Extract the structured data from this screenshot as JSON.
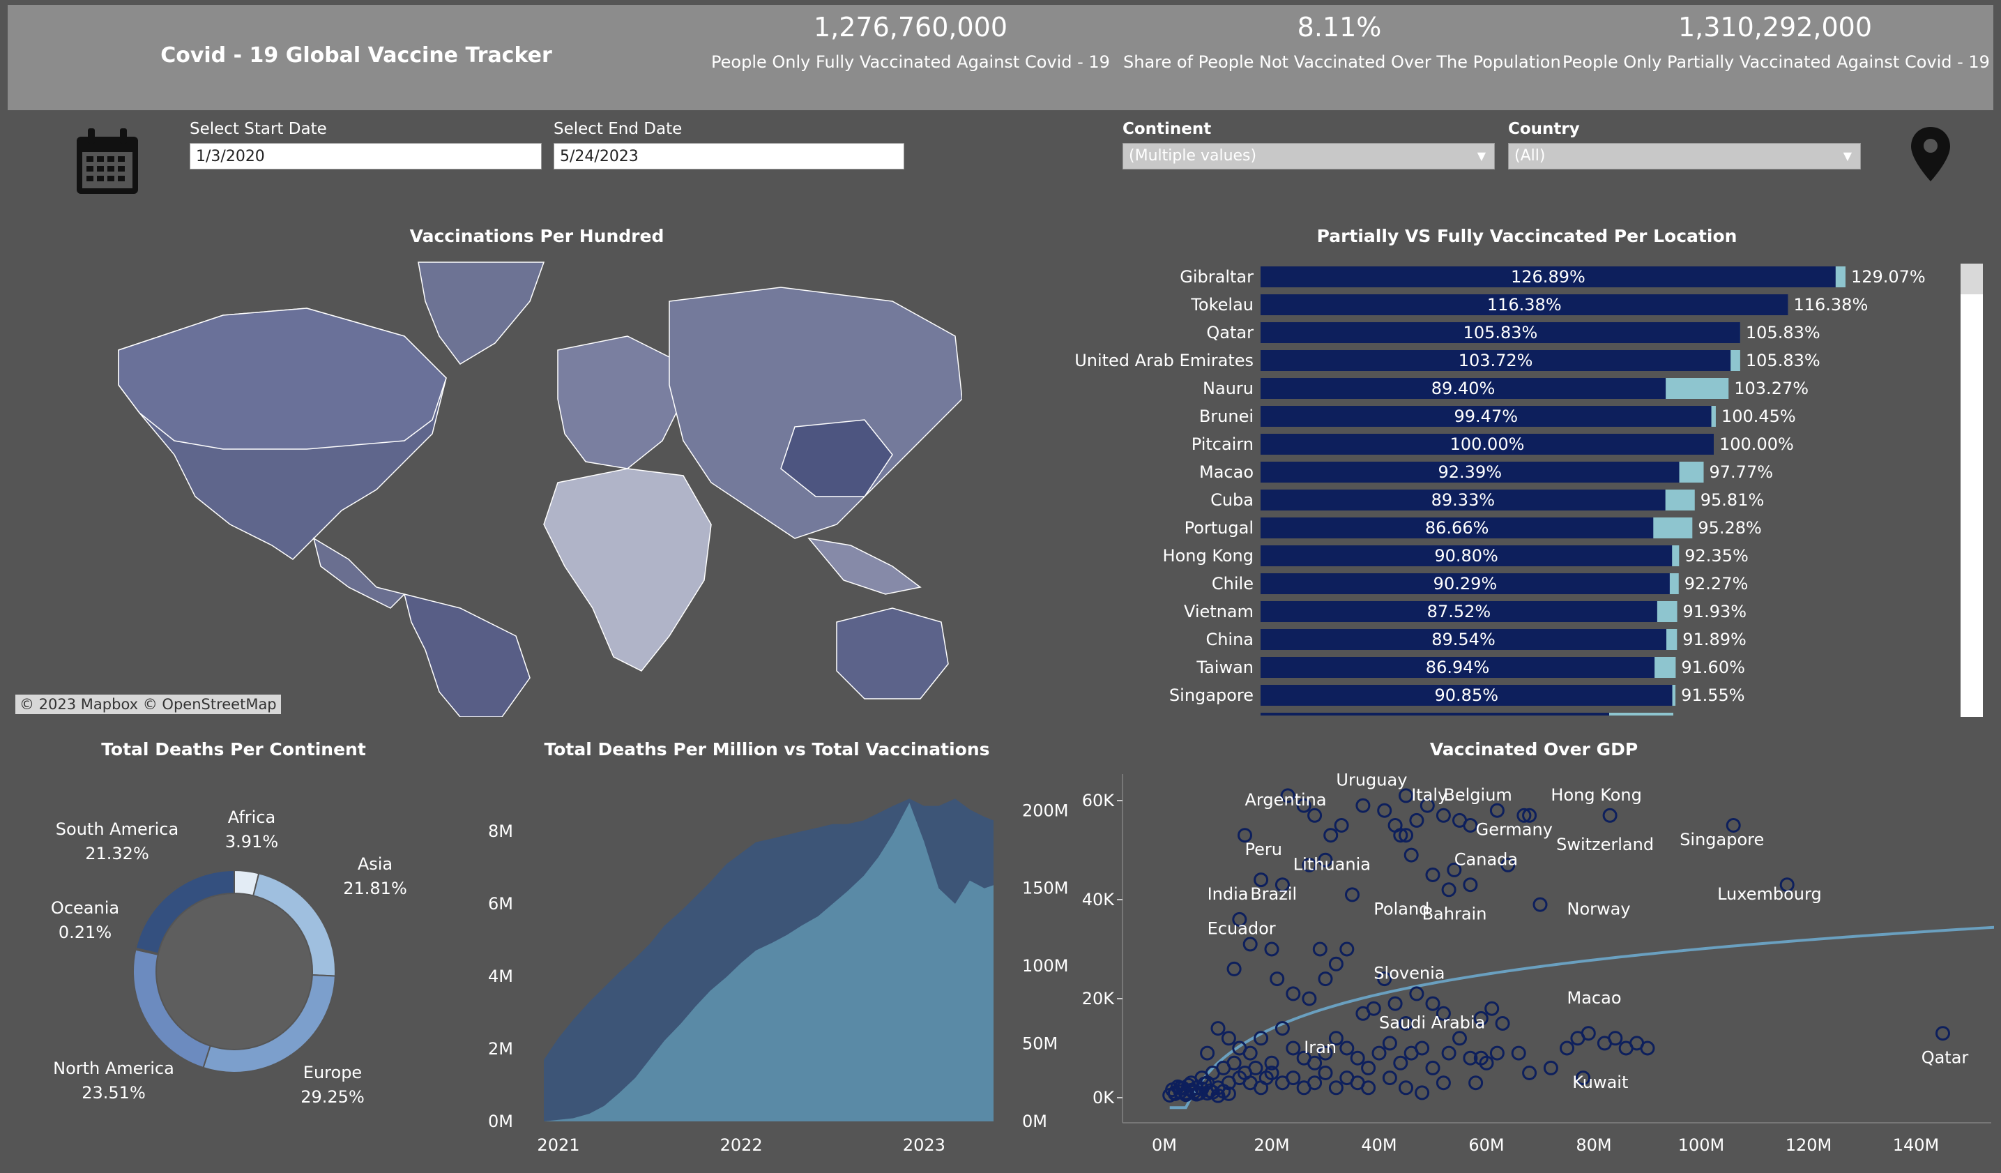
{
  "header": {
    "title": "Covid - 19 Global Vaccine Tracker",
    "kpis": [
      {
        "value": "1,276,760,000",
        "label": "People Only Fully Vaccinated Against Covid - 19"
      },
      {
        "value": "8.11%",
        "label": "Share of People Not Vaccinated Over The Population"
      },
      {
        "value": "1,310,292,000",
        "label": "People Only Partially Vaccinated Against Covid - 19"
      }
    ]
  },
  "filters": {
    "start_label": "Select Start Date",
    "start_value": "1/3/2020",
    "end_label": "Select End Date",
    "end_value": "5/24/2023",
    "continent_label": "Continent",
    "continent_value": "(Multiple values)",
    "country_label": "Country",
    "country_value": "(All)",
    "icons": [
      "calendar-icon",
      "location-pin-icon",
      "chevron-down-icon"
    ]
  },
  "map": {
    "title": "Vaccinations Per Hundred",
    "attribution": "© 2023 Mapbox  © OpenStreetMap"
  },
  "colors": {
    "background": "#555555",
    "header": "#8c8c8c",
    "fully": "#0d1f5c",
    "partial": "#8ec5cf",
    "deaths_area": "#3d5577",
    "vacc_area": "#5a8aa6",
    "trend": "#6aa0c0"
  },
  "chart_data": [
    {
      "id": "bars",
      "type": "bar",
      "orientation": "horizontal",
      "title": "Partially VS Fully Vaccincated Per Location",
      "categories": [
        "Gibraltar",
        "Tokelau",
        "Qatar",
        "United Arab Emirates",
        "Nauru",
        "Brunei",
        "Pitcairn",
        "Macao",
        "Cuba",
        "Portugal",
        "Hong Kong",
        "Chile",
        "Vietnam",
        "China",
        "Taiwan",
        "Singapore"
      ],
      "series": [
        {
          "name": "fully",
          "values": [
            126.89,
            116.38,
            105.83,
            103.72,
            89.4,
            99.47,
            100.0,
            92.39,
            89.33,
            86.66,
            90.8,
            90.29,
            87.52,
            89.54,
            86.94,
            90.85
          ],
          "labels": [
            "126.89%",
            "116.38%",
            "105.83%",
            "103.72%",
            "89.40%",
            "99.47%",
            "100.00%",
            "92.39%",
            "89.33%",
            "86.66%",
            "90.80%",
            "90.29%",
            "87.52%",
            "89.54%",
            "86.94%",
            "90.85%"
          ]
        },
        {
          "name": "partial",
          "values": [
            129.07,
            116.38,
            105.83,
            105.83,
            103.27,
            100.45,
            100.0,
            97.77,
            95.81,
            95.28,
            92.35,
            92.27,
            91.93,
            91.89,
            91.6,
            91.55
          ],
          "labels": [
            "129.07%",
            "116.38%",
            "105.83%",
            "105.83%",
            "103.27%",
            "100.45%",
            "100.00%",
            "97.77%",
            "95.81%",
            "95.28%",
            "92.35%",
            "92.27%",
            "91.93%",
            "91.89%",
            "91.60%",
            "91.55%"
          ]
        }
      ]
    },
    {
      "id": "donut",
      "type": "pie",
      "title": "Total Deaths Per Continent",
      "categories": [
        "Africa",
        "Asia",
        "Europe",
        "North America",
        "Oceania",
        "South America"
      ],
      "values": [
        3.91,
        21.81,
        29.25,
        23.51,
        0.21,
        21.32
      ],
      "labels": [
        "3.91%",
        "21.81%",
        "29.25%",
        "23.51%",
        "0.21%",
        "21.32%"
      ],
      "colors": [
        "#e3ecf5",
        "#9fbfdf",
        "#7c9fcc",
        "#6c8bbf",
        "#5e7bb2",
        "#34507f"
      ]
    },
    {
      "id": "area",
      "type": "area",
      "title": "Total Deaths Per Million vs Total Vaccinations",
      "x": [
        2020.92,
        2021.0,
        2021.08,
        2021.17,
        2021.25,
        2021.33,
        2021.42,
        2021.5,
        2021.58,
        2021.67,
        2021.75,
        2021.83,
        2021.92,
        2022.0,
        2022.08,
        2022.17,
        2022.25,
        2022.33,
        2022.42,
        2022.5,
        2022.58,
        2022.67,
        2022.75,
        2022.83,
        2022.92,
        2023.0,
        2023.08,
        2023.17,
        2023.25,
        2023.33,
        2023.38
      ],
      "x_ticks": [
        "2021",
        "2022",
        "2023"
      ],
      "left_ticks": [
        "0M",
        "2M",
        "4M",
        "6M",
        "8M"
      ],
      "right_ticks": [
        "0M",
        "50M",
        "100M",
        "150M",
        "200M"
      ],
      "series": [
        {
          "name": "deaths",
          "axis": "left",
          "values": [
            1.7,
            2.3,
            2.8,
            3.3,
            3.7,
            4.1,
            4.5,
            4.9,
            5.4,
            5.8,
            6.2,
            6.6,
            7.1,
            7.4,
            7.7,
            7.8,
            7.9,
            8.0,
            8.1,
            8.2,
            8.2,
            8.3,
            8.5,
            8.7,
            8.9,
            8.7,
            8.7,
            8.9,
            8.6,
            8.4,
            8.3
          ]
        },
        {
          "name": "vaccinations",
          "axis": "right",
          "values": [
            0,
            1,
            2,
            5,
            10,
            18,
            28,
            40,
            52,
            63,
            74,
            84,
            93,
            102,
            110,
            115,
            120,
            126,
            132,
            140,
            148,
            158,
            170,
            185,
            205,
            180,
            150,
            140,
            155,
            150,
            152
          ]
        }
      ]
    },
    {
      "id": "scatter",
      "type": "scatter",
      "title": "Vaccinated Over GDP",
      "x_ticks": [
        "0M",
        "20M",
        "40M",
        "60M",
        "80M",
        "100M",
        "120M",
        "140M"
      ],
      "y_ticks": [
        "0K",
        "20K",
        "40K",
        "60K"
      ],
      "points": [
        [
          23,
          61
        ],
        [
          26,
          59
        ],
        [
          28,
          57
        ],
        [
          31,
          53
        ],
        [
          33,
          55
        ],
        [
          37,
          59
        ],
        [
          41,
          58
        ],
        [
          43,
          55
        ],
        [
          45,
          61
        ],
        [
          47,
          56
        ],
        [
          49,
          59
        ],
        [
          52,
          57
        ],
        [
          55,
          56
        ],
        [
          57,
          55
        ],
        [
          62,
          58
        ],
        [
          67,
          57
        ],
        [
          68,
          57
        ],
        [
          83,
          57
        ],
        [
          106,
          55
        ],
        [
          116,
          43
        ],
        [
          15,
          53
        ],
        [
          18,
          44
        ],
        [
          22,
          43
        ],
        [
          27,
          47
        ],
        [
          30,
          48
        ],
        [
          35,
          41
        ],
        [
          44,
          53
        ],
        [
          45,
          53
        ],
        [
          46,
          49
        ],
        [
          50,
          45
        ],
        [
          54,
          46
        ],
        [
          53,
          42
        ],
        [
          57,
          43
        ],
        [
          64,
          47
        ],
        [
          70,
          39
        ],
        [
          13,
          26
        ],
        [
          14,
          36
        ],
        [
          16,
          31
        ],
        [
          20,
          30
        ],
        [
          21,
          24
        ],
        [
          24,
          21
        ],
        [
          27,
          20
        ],
        [
          29,
          30
        ],
        [
          30,
          24
        ],
        [
          32,
          27
        ],
        [
          34,
          30
        ],
        [
          37,
          17
        ],
        [
          39,
          18
        ],
        [
          41,
          24
        ],
        [
          43,
          19
        ],
        [
          45,
          15
        ],
        [
          47,
          21
        ],
        [
          50,
          19
        ],
        [
          52,
          17
        ],
        [
          55,
          12
        ],
        [
          59,
          16
        ],
        [
          61,
          18
        ],
        [
          63,
          15
        ],
        [
          8,
          9
        ],
        [
          10,
          14
        ],
        [
          12,
          12
        ],
        [
          14,
          10
        ],
        [
          16,
          9
        ],
        [
          18,
          12
        ],
        [
          20,
          7
        ],
        [
          22,
          14
        ],
        [
          24,
          10
        ],
        [
          26,
          8
        ],
        [
          28,
          7
        ],
        [
          30,
          9
        ],
        [
          32,
          12
        ],
        [
          34,
          10
        ],
        [
          36,
          8
        ],
        [
          38,
          6
        ],
        [
          40,
          9
        ],
        [
          42,
          11
        ],
        [
          44,
          7
        ],
        [
          46,
          9
        ],
        [
          48,
          10
        ],
        [
          50,
          6
        ],
        [
          53,
          9
        ],
        [
          57,
          8
        ],
        [
          59,
          8
        ],
        [
          60,
          7
        ],
        [
          62,
          9
        ],
        [
          66,
          9
        ],
        [
          72,
          6
        ],
        [
          75,
          10
        ],
        [
          77,
          12
        ],
        [
          79,
          13
        ],
        [
          82,
          11
        ],
        [
          84,
          12
        ],
        [
          86,
          10
        ],
        [
          88,
          11
        ],
        [
          90,
          10
        ],
        [
          145,
          13
        ],
        [
          2,
          1
        ],
        [
          3,
          2
        ],
        [
          4,
          1
        ],
        [
          5,
          3
        ],
        [
          6,
          2
        ],
        [
          7,
          4
        ],
        [
          8,
          3
        ],
        [
          9,
          5
        ],
        [
          10,
          2
        ],
        [
          11,
          6
        ],
        [
          12,
          3
        ],
        [
          13,
          7
        ],
        [
          14,
          4
        ],
        [
          15,
          5
        ],
        [
          16,
          3
        ],
        [
          17,
          6
        ],
        [
          18,
          2
        ],
        [
          19,
          4
        ],
        [
          20,
          5
        ],
        [
          22,
          3
        ],
        [
          24,
          4
        ],
        [
          26,
          2
        ],
        [
          28,
          3
        ],
        [
          30,
          5
        ],
        [
          32,
          2
        ],
        [
          34,
          4
        ],
        [
          36,
          3
        ],
        [
          38,
          2
        ],
        [
          42,
          4
        ],
        [
          45,
          2
        ],
        [
          48,
          1
        ],
        [
          52,
          3
        ],
        [
          58,
          3
        ],
        [
          68,
          5
        ],
        [
          78,
          4
        ],
        [
          1,
          0.5
        ],
        [
          2,
          0.8
        ],
        [
          3,
          1.2
        ],
        [
          4,
          0.6
        ],
        [
          5,
          1.5
        ],
        [
          6,
          0.7
        ],
        [
          7,
          1.8
        ],
        [
          8,
          0.9
        ],
        [
          9,
          1.1
        ],
        [
          10,
          0.4
        ],
        [
          11,
          1.3
        ],
        [
          12,
          0.8
        ],
        [
          1.5,
          1.6
        ],
        [
          2.5,
          2.2
        ],
        [
          3.5,
          1.9
        ],
        [
          4.5,
          2.5
        ],
        [
          5.5,
          1.1
        ],
        [
          6.5,
          0.9
        ],
        [
          7.5,
          2.8
        ],
        [
          8.5,
          1.4
        ]
      ],
      "labels": [
        {
          "text": "Argentina",
          "x": 15,
          "y": 59
        },
        {
          "text": "Uruguay",
          "x": 32,
          "y": 63
        },
        {
          "text": "Italy",
          "x": 46,
          "y": 60
        },
        {
          "text": "Belgium",
          "x": 52,
          "y": 60
        },
        {
          "text": "Hong Kong",
          "x": 72,
          "y": 60
        },
        {
          "text": "Germany",
          "x": 58,
          "y": 53
        },
        {
          "text": "Peru",
          "x": 15,
          "y": 49
        },
        {
          "text": "Switzerland",
          "x": 73,
          "y": 50
        },
        {
          "text": "Singapore",
          "x": 96,
          "y": 51
        },
        {
          "text": "Lithuania",
          "x": 24,
          "y": 46
        },
        {
          "text": "Canada",
          "x": 54,
          "y": 47
        },
        {
          "text": "India",
          "x": 8,
          "y": 40
        },
        {
          "text": "Brazil",
          "x": 16,
          "y": 40
        },
        {
          "text": "Luxembourg",
          "x": 103,
          "y": 40
        },
        {
          "text": "Poland",
          "x": 39,
          "y": 37
        },
        {
          "text": "Bahrain",
          "x": 48,
          "y": 36
        },
        {
          "text": "Norway",
          "x": 75,
          "y": 37
        },
        {
          "text": "Ecuador",
          "x": 8,
          "y": 33
        },
        {
          "text": "Slovenia",
          "x": 39,
          "y": 24
        },
        {
          "text": "Macao",
          "x": 75,
          "y": 19
        },
        {
          "text": "Saudi Arabia",
          "x": 40,
          "y": 14
        },
        {
          "text": "Iran",
          "x": 26,
          "y": 9
        },
        {
          "text": "Qatar",
          "x": 141,
          "y": 7
        },
        {
          "text": "Kuwait",
          "x": 76,
          "y": 2
        }
      ],
      "trend": "log"
    }
  ]
}
